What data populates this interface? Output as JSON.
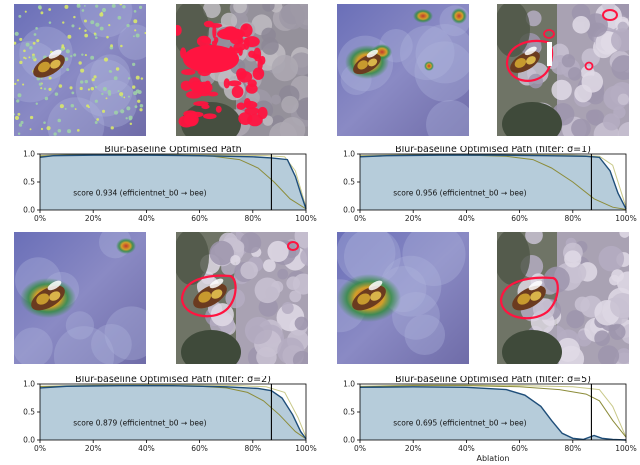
{
  "chart_data": [
    {
      "type": "area",
      "title": "Blur-baseline Optimised Path",
      "xlabel": "",
      "ylabel": "",
      "xlim": [
        0,
        100
      ],
      "ylim": [
        0,
        1.0
      ],
      "xticks": [
        "0%",
        "20%",
        "40%",
        "60%",
        "80%",
        "100%"
      ],
      "yticks": [
        "0.0",
        "0.5",
        "1.0"
      ],
      "annotation": "score 0.934 (efficientnet_b0 → bee)",
      "vline_x": 87,
      "series": [
        {
          "values": [
            [
              0,
              0.94
            ],
            [
              5,
              0.97
            ],
            [
              20,
              0.98
            ],
            [
              40,
              0.98
            ],
            [
              60,
              0.97
            ],
            [
              80,
              0.95
            ],
            [
              87,
              0.93
            ],
            [
              93,
              0.9
            ],
            [
              96,
              0.6
            ],
            [
              98,
              0.3
            ],
            [
              100,
              0.02
            ]
          ]
        },
        {
          "values": [
            [
              0,
              0.96
            ],
            [
              10,
              0.98
            ],
            [
              30,
              0.99
            ],
            [
              50,
              0.98
            ],
            [
              65,
              0.96
            ],
            [
              75,
              0.9
            ],
            [
              82,
              0.75
            ],
            [
              88,
              0.5
            ],
            [
              94,
              0.2
            ],
            [
              100,
              0.02
            ]
          ]
        },
        {
          "values": [
            [
              0,
              0.97
            ],
            [
              10,
              0.99
            ],
            [
              30,
              0.99
            ],
            [
              50,
              0.99
            ],
            [
              70,
              0.98
            ],
            [
              85,
              0.97
            ],
            [
              92,
              0.95
            ],
            [
              96,
              0.7
            ],
            [
              100,
              0.05
            ]
          ]
        }
      ]
    },
    {
      "type": "area",
      "title": "Blur-baseline Optimised Path (filter: σ=1)",
      "xlabel": "",
      "ylabel": "",
      "xlim": [
        0,
        100
      ],
      "ylim": [
        0,
        1.0
      ],
      "xticks": [
        "0%",
        "20%",
        "40%",
        "60%",
        "80%",
        "100%"
      ],
      "yticks": [
        "0.0",
        "0.5",
        "1.0"
      ],
      "annotation": "score 0.956 (efficientnet_b0 → bee)",
      "vline_x": 87,
      "series": [
        {
          "values": [
            [
              0,
              0.95
            ],
            [
              10,
              0.97
            ],
            [
              30,
              0.98
            ],
            [
              50,
              0.98
            ],
            [
              70,
              0.97
            ],
            [
              85,
              0.96
            ],
            [
              90,
              0.94
            ],
            [
              94,
              0.7
            ],
            [
              97,
              0.3
            ],
            [
              100,
              0.02
            ]
          ]
        },
        {
          "values": [
            [
              0,
              0.96
            ],
            [
              20,
              0.98
            ],
            [
              40,
              0.98
            ],
            [
              55,
              0.96
            ],
            [
              65,
              0.9
            ],
            [
              72,
              0.75
            ],
            [
              80,
              0.5
            ],
            [
              88,
              0.2
            ],
            [
              95,
              0.05
            ],
            [
              100,
              0.01
            ]
          ]
        },
        {
          "values": [
            [
              0,
              0.97
            ],
            [
              20,
              0.99
            ],
            [
              40,
              0.99
            ],
            [
              60,
              0.99
            ],
            [
              80,
              0.98
            ],
            [
              90,
              0.96
            ],
            [
              95,
              0.8
            ],
            [
              100,
              0.05
            ]
          ]
        }
      ]
    },
    {
      "type": "area",
      "title": "Blur-baseline Optimised Path (filter: σ=2)",
      "xlabel": "",
      "ylabel": "",
      "xlim": [
        0,
        100
      ],
      "ylim": [
        0,
        1.0
      ],
      "xticks": [
        "0%",
        "20%",
        "40%",
        "60%",
        "80%",
        "100%"
      ],
      "yticks": [
        "0.0",
        "0.5",
        "1.0"
      ],
      "annotation": "score 0.879 (efficientnet_b0 → bee)",
      "vline_x": 87,
      "series": [
        {
          "values": [
            [
              0,
              0.93
            ],
            [
              10,
              0.96
            ],
            [
              30,
              0.97
            ],
            [
              50,
              0.97
            ],
            [
              70,
              0.95
            ],
            [
              82,
              0.92
            ],
            [
              87,
              0.88
            ],
            [
              91,
              0.75
            ],
            [
              95,
              0.45
            ],
            [
              98,
              0.15
            ],
            [
              100,
              0.02
            ]
          ]
        },
        {
          "values": [
            [
              0,
              0.95
            ],
            [
              20,
              0.97
            ],
            [
              40,
              0.97
            ],
            [
              60,
              0.96
            ],
            [
              70,
              0.93
            ],
            [
              78,
              0.85
            ],
            [
              84,
              0.7
            ],
            [
              90,
              0.45
            ],
            [
              96,
              0.15
            ],
            [
              100,
              0.02
            ]
          ]
        },
        {
          "values": [
            [
              0,
              0.96
            ],
            [
              20,
              0.98
            ],
            [
              40,
              0.99
            ],
            [
              60,
              0.98
            ],
            [
              75,
              0.97
            ],
            [
              85,
              0.95
            ],
            [
              92,
              0.85
            ],
            [
              97,
              0.4
            ],
            [
              100,
              0.05
            ]
          ]
        }
      ]
    },
    {
      "type": "area",
      "title": "Blur-baseline Optimised Path (filter: σ=5)",
      "xlabel": "Ablation",
      "ylabel": "",
      "xlim": [
        0,
        100
      ],
      "ylim": [
        0,
        1.0
      ],
      "xticks": [
        "0%",
        "20%",
        "40%",
        "60%",
        "80%",
        "100%"
      ],
      "yticks": [
        "0.0",
        "0.5",
        "1.0"
      ],
      "annotation": "score 0.695 (efficientnet_b0 → bee)",
      "vline_x": 87,
      "series": [
        {
          "values": [
            [
              0,
              0.94
            ],
            [
              20,
              0.95
            ],
            [
              40,
              0.94
            ],
            [
              55,
              0.9
            ],
            [
              62,
              0.8
            ],
            [
              68,
              0.6
            ],
            [
              72,
              0.35
            ],
            [
              76,
              0.12
            ],
            [
              80,
              0.03
            ],
            [
              84,
              0.01
            ],
            [
              88,
              0.08
            ],
            [
              91,
              0.03
            ],
            [
              95,
              0.01
            ],
            [
              100,
              0.0
            ]
          ]
        },
        {
          "values": [
            [
              0,
              0.95
            ],
            [
              20,
              0.97
            ],
            [
              40,
              0.97
            ],
            [
              60,
              0.95
            ],
            [
              75,
              0.9
            ],
            [
              85,
              0.82
            ],
            [
              90,
              0.7
            ],
            [
              95,
              0.35
            ],
            [
              100,
              0.05
            ]
          ]
        },
        {
          "values": [
            [
              0,
              0.96
            ],
            [
              20,
              0.98
            ],
            [
              40,
              0.98
            ],
            [
              60,
              0.97
            ],
            [
              80,
              0.95
            ],
            [
              90,
              0.9
            ],
            [
              95,
              0.6
            ],
            [
              100,
              0.05
            ]
          ]
        }
      ]
    }
  ],
  "colors": {
    "area_fill": "#a9c3d3",
    "line_primary": "#1f4e79",
    "line_secondary": "#8c8c3a",
    "line_tertiary": "#c9c98a",
    "vline": "#000000"
  },
  "tiles": [
    {
      "kind": "saliency-scatter",
      "name": "saliency-map-row1-a"
    },
    {
      "kind": "mask-red-blotches",
      "name": "masked-photo-row1-a"
    },
    {
      "kind": "saliency-heat-blobs",
      "name": "saliency-map-row1-b"
    },
    {
      "kind": "mask-outline-multi",
      "name": "masked-photo-row1-b"
    },
    {
      "kind": "saliency-heat-single",
      "name": "saliency-map-row2-a"
    },
    {
      "kind": "mask-outline-two",
      "name": "masked-photo-row2-a"
    },
    {
      "kind": "saliency-heat-smooth",
      "name": "saliency-map-row2-b"
    },
    {
      "kind": "mask-outline-one",
      "name": "masked-photo-row2-b"
    }
  ]
}
